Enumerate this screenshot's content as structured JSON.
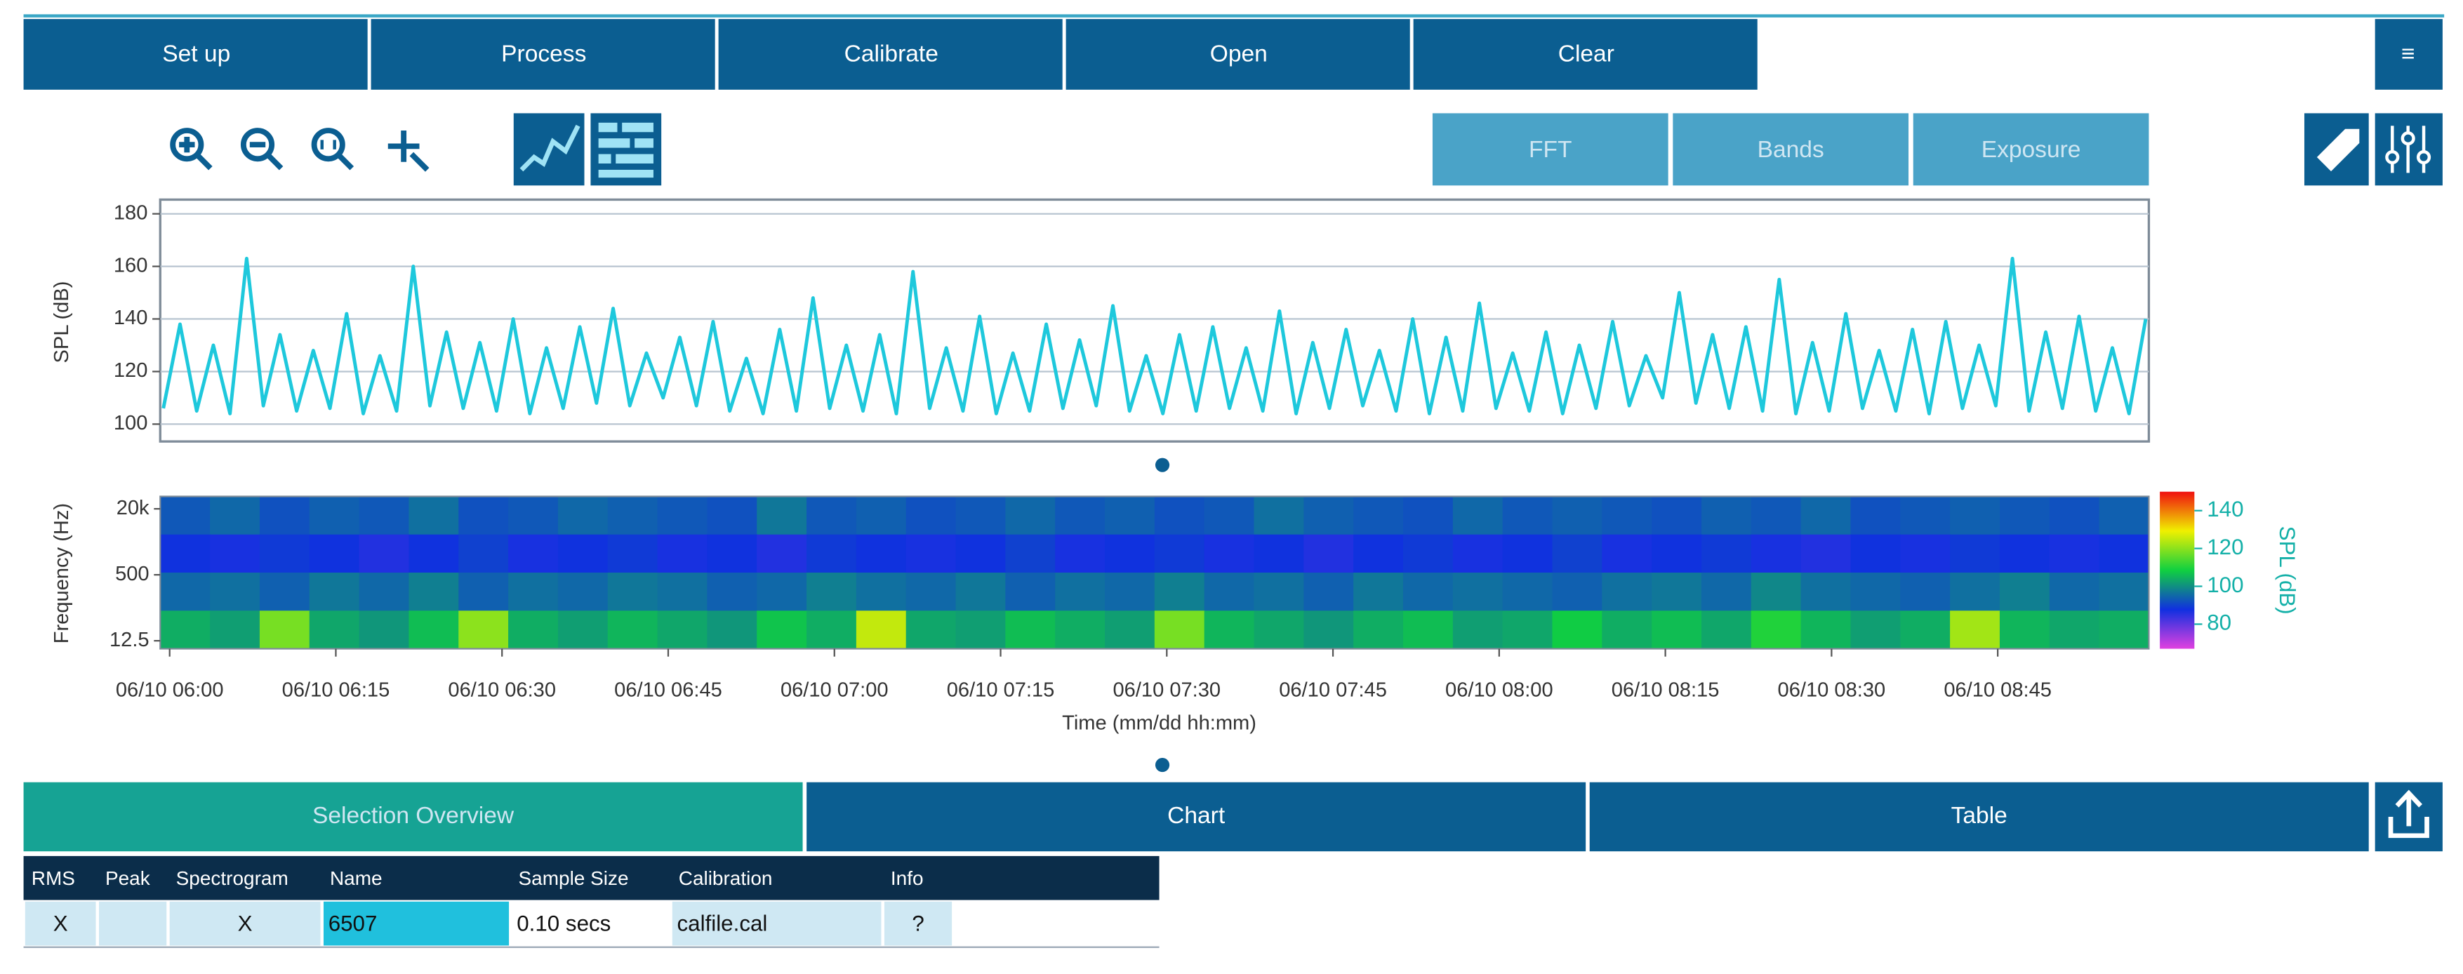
{
  "toolbar": {
    "buttons": [
      "Set up",
      "Process",
      "Calibrate",
      "Open",
      "Clear"
    ]
  },
  "view_tabs": [
    "FFT",
    "Bands",
    "Exposure"
  ],
  "spl_chart": {
    "type": "line",
    "y_label": "SPL (dB)",
    "ylim": [
      93.4,
      185.4
    ],
    "yticks": [
      100,
      120,
      140,
      160,
      180
    ],
    "grid": true,
    "color": "#1ec8dc",
    "values": [
      106,
      138,
      105,
      130,
      104,
      163,
      107,
      134,
      105,
      128,
      106,
      142,
      104,
      126,
      105,
      160,
      107,
      135,
      106,
      131,
      105,
      140,
      104,
      129,
      106,
      137,
      108,
      144,
      107,
      127,
      110,
      133,
      107,
      139,
      105,
      125,
      104,
      136,
      105,
      148,
      106,
      130,
      105,
      134,
      104,
      158,
      106,
      129,
      105,
      141,
      104,
      127,
      105,
      138,
      106,
      132,
      107,
      145,
      105,
      126,
      104,
      134,
      105,
      137,
      106,
      129,
      105,
      143,
      104,
      131,
      106,
      136,
      107,
      128,
      105,
      140,
      104,
      133,
      105,
      146,
      106,
      127,
      105,
      135,
      104,
      130,
      106,
      139,
      107,
      126,
      110,
      150,
      108,
      134,
      106,
      137,
      105,
      155,
      104,
      131,
      105,
      142,
      106,
      128,
      105,
      136,
      104,
      139,
      106,
      130,
      107,
      163,
      105,
      135,
      106,
      141,
      105,
      129,
      104,
      140
    ]
  },
  "spectrogram": {
    "type": "heatmap",
    "y_label": "Frequency (Hz)",
    "log_scale": true,
    "ylim": [
      8,
      40000
    ],
    "yticks": [
      {
        "value": 20000,
        "label": "20k"
      },
      {
        "value": 500,
        "label": "500"
      },
      {
        "value": 12.5,
        "label": "12.5"
      }
    ],
    "values": [
      [
        93,
        95,
        92,
        94,
        93,
        96,
        92,
        93,
        95,
        94,
        93,
        92,
        97,
        93,
        94,
        92,
        93,
        95,
        93,
        94,
        92,
        93,
        96,
        94,
        93,
        92,
        95,
        93,
        94,
        93,
        92,
        94,
        93,
        95,
        92,
        93,
        94,
        93,
        92,
        94
      ],
      [
        88,
        87,
        89,
        88,
        86,
        88,
        90,
        87,
        88,
        89,
        87,
        88,
        86,
        89,
        88,
        87,
        88,
        90,
        87,
        88,
        89,
        87,
        88,
        86,
        88,
        89,
        87,
        88,
        90,
        87,
        88,
        89,
        87,
        86,
        88,
        87,
        89,
        88,
        87,
        88
      ],
      [
        95,
        96,
        94,
        97,
        95,
        98,
        94,
        96,
        95,
        97,
        96,
        94,
        95,
        98,
        96,
        95,
        97,
        94,
        96,
        95,
        98,
        95,
        96,
        94,
        97,
        95,
        96,
        95,
        94,
        96,
        97,
        95,
        99,
        96,
        95,
        94,
        96,
        98,
        95,
        96
      ],
      [
        104,
        102,
        118,
        103,
        101,
        106,
        120,
        104,
        102,
        105,
        103,
        101,
        107,
        104,
        125,
        103,
        102,
        106,
        104,
        102,
        118,
        105,
        103,
        101,
        104,
        106,
        102,
        103,
        108,
        104,
        106,
        103,
        110,
        105,
        102,
        104,
        122,
        105,
        103,
        104
      ]
    ],
    "colorbar": {
      "label": "SPL (dB)",
      "lim": [
        67,
        150
      ],
      "ticks": [
        80,
        100,
        120,
        140
      ],
      "colormap": [
        "#e040e0",
        "#1030e0",
        "#10d040",
        "#f0f000",
        "#f01010"
      ]
    }
  },
  "x_label": "Time (mm/dd hh:mm)",
  "xticks": [
    "06/10 06:00",
    "06/10 06:15",
    "06/10 06:30",
    "06/10 06:45",
    "06/10 07:00",
    "06/10 07:15",
    "06/10 07:30",
    "06/10 07:45",
    "06/10 08:00",
    "06/10 08:15",
    "06/10 08:30",
    "06/10 08:45"
  ],
  "bottom_tabs": [
    "Selection Overview",
    "Chart",
    "Table"
  ],
  "table": {
    "columns": [
      "RMS",
      "Peak",
      "Spectrogram",
      "Name",
      "Sample Size",
      "Calibration",
      "Info"
    ],
    "rows": [
      [
        "X",
        null,
        "X",
        "6507",
        "0.10 secs",
        "calfile.cal",
        "?"
      ]
    ]
  }
}
